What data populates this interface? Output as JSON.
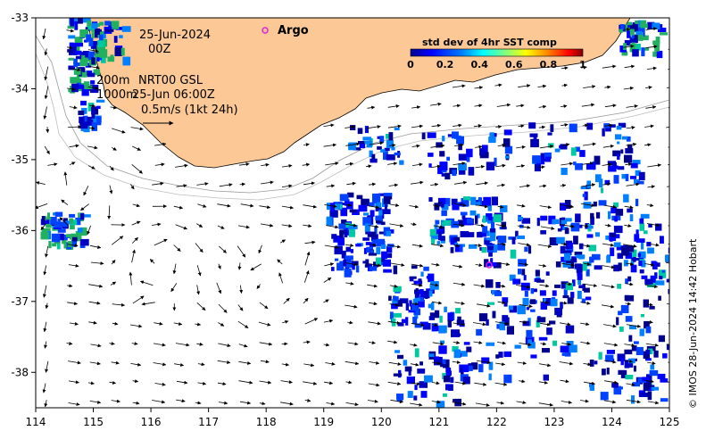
{
  "map": {
    "date": "25-Jun-2024",
    "hour": "00Z",
    "legend_argo": "Argo",
    "depth_200": "200m",
    "depth_1000": "1000m",
    "product": "NRT00 GSL",
    "product_time": "25-Jun 06:00Z",
    "vector_scale": "0.5m/s (1kt 24h)",
    "copyright": "© IMOS 28-Jun-2024 14:42 Hobart",
    "lon_ticks": [
      "114",
      "115",
      "116",
      "117",
      "118",
      "119",
      "120",
      "121",
      "122",
      "123",
      "124",
      "125"
    ],
    "lat_ticks": [
      "-33",
      "-34",
      "-35",
      "-36",
      "-37",
      "-38"
    ],
    "lon_range": [
      114,
      125
    ],
    "lat_range": [
      -38.5,
      -33
    ],
    "land_color": "#fbc896",
    "argo_color": "#e020e0"
  },
  "colorbar": {
    "title": "std dev of 4hr SST comp",
    "ticks": [
      "0",
      "0.2",
      "0.4",
      "0.6",
      "0.8",
      "1"
    ],
    "colors": [
      "#00008f",
      "#0000ff",
      "#0080ff",
      "#00ffff",
      "#80ff80",
      "#ffff00",
      "#ff8000",
      "#ff0000",
      "#800000"
    ]
  }
}
